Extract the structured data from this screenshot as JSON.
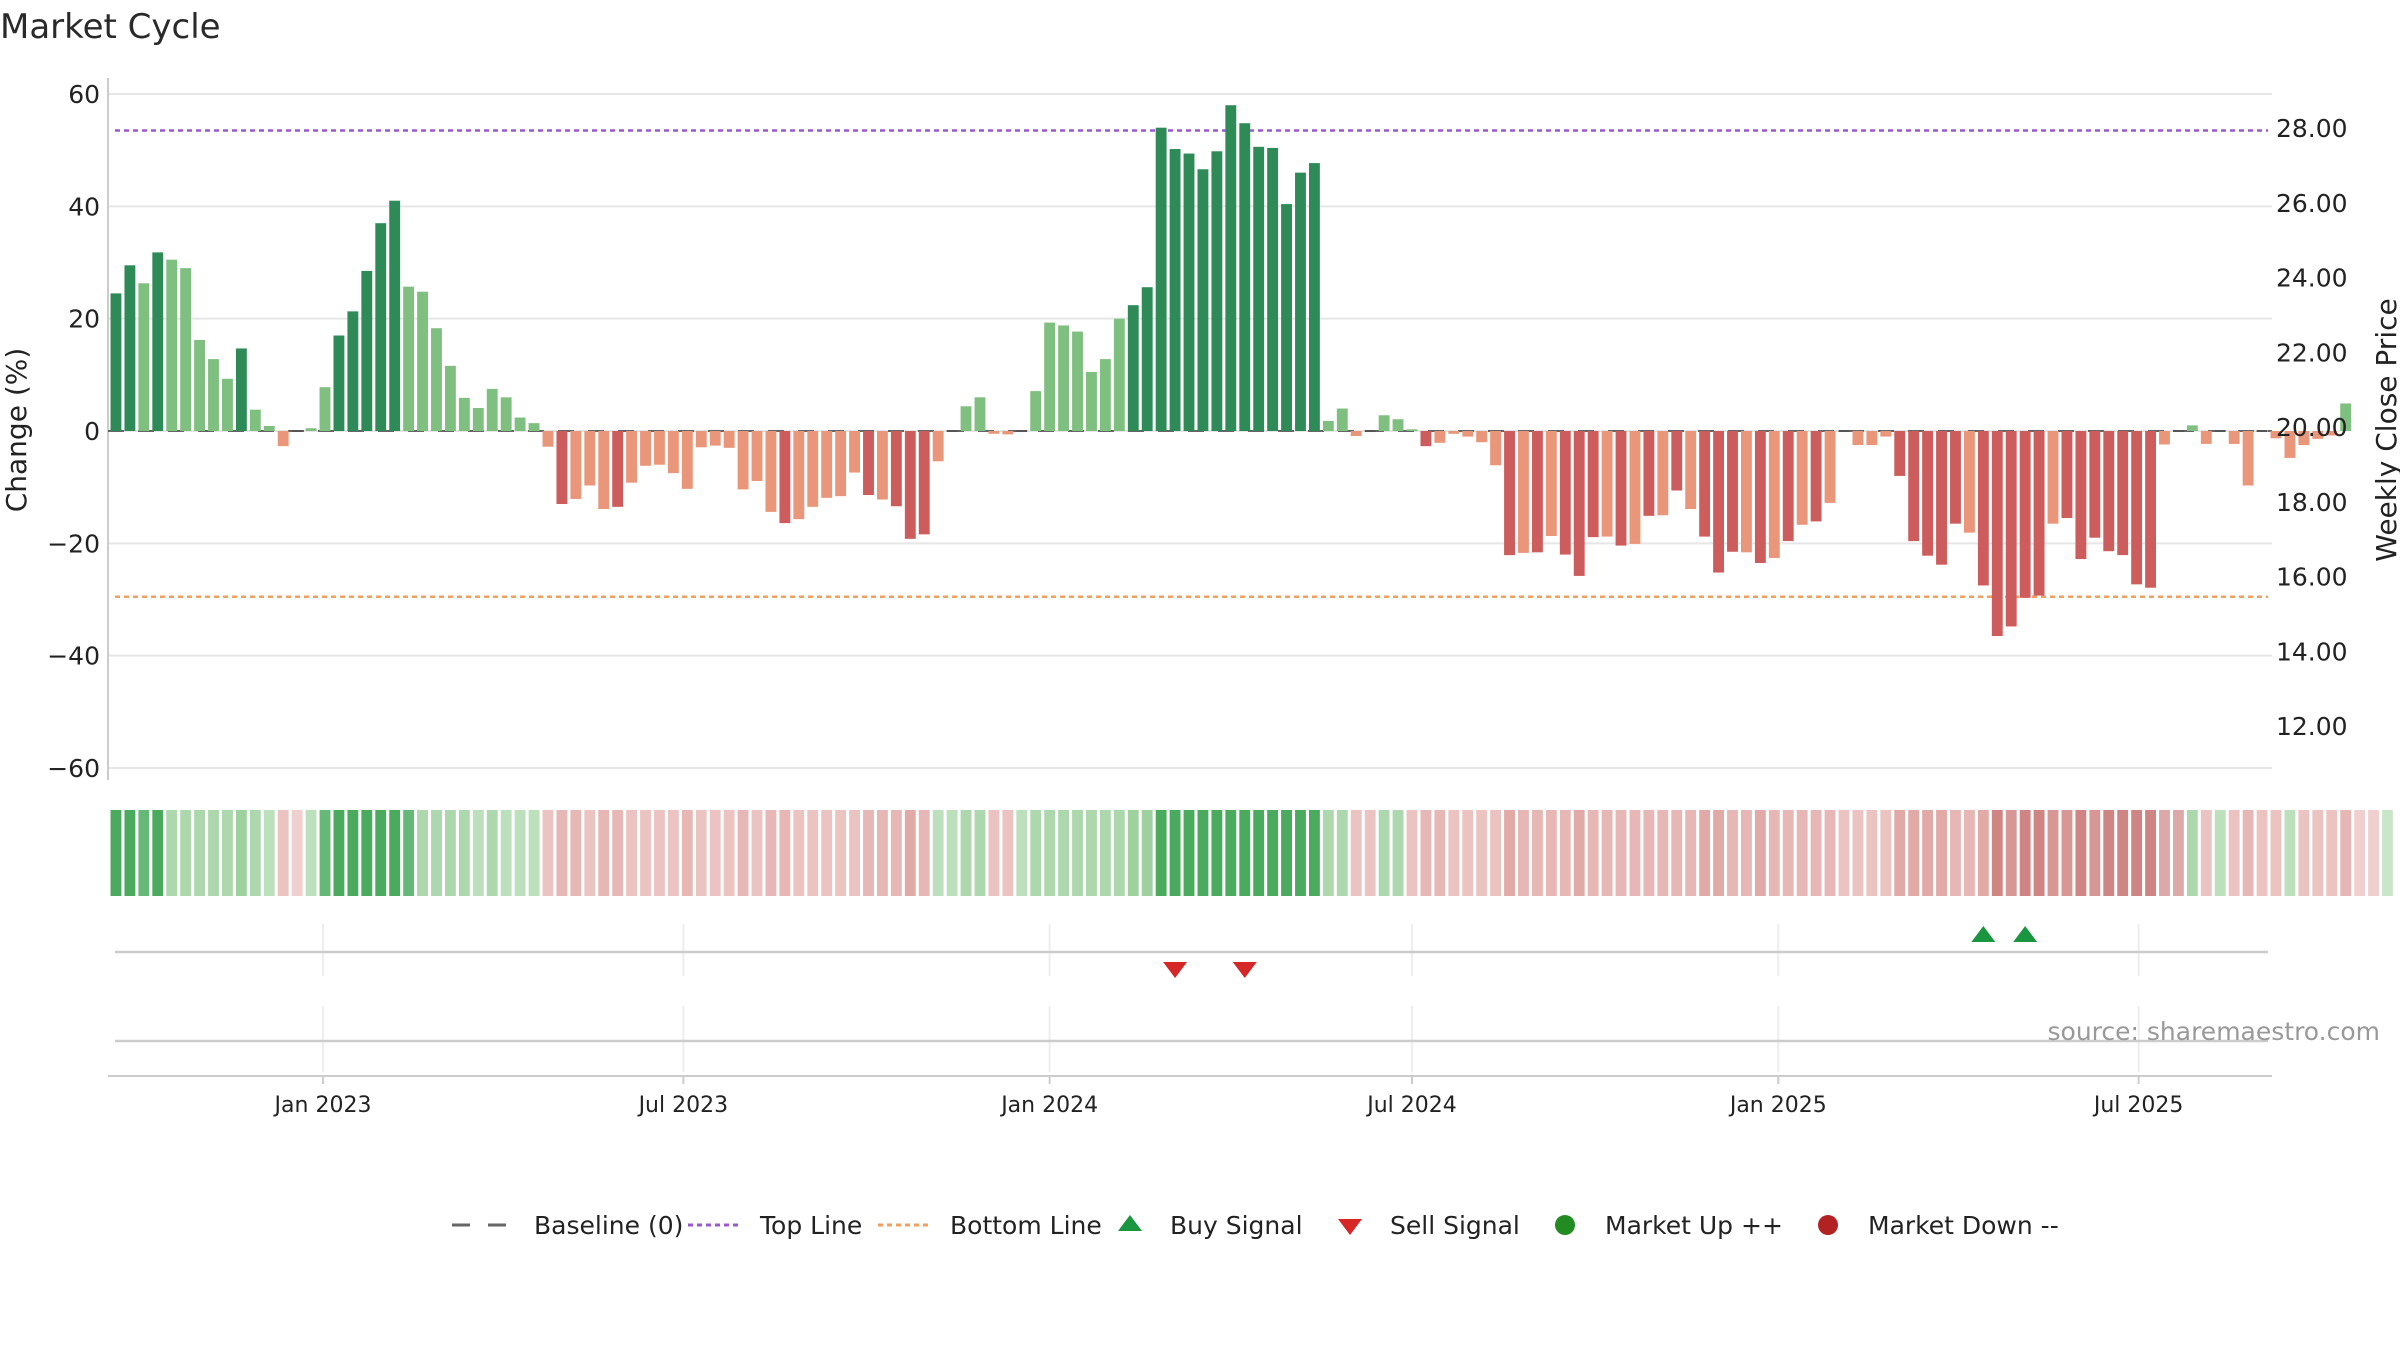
{
  "chart_data": {
    "type": "bar",
    "title": "Market Cycle",
    "ylabel_left": "Change (%)",
    "ylabel_right": "Weekly Close Price",
    "ylim_left": [
      -60,
      60
    ],
    "yticks_left": [
      "60",
      "40",
      "20",
      "0",
      "−20",
      "−40",
      "−60"
    ],
    "yticks_left_values": [
      60,
      40,
      20,
      0,
      -20,
      -40,
      -60
    ],
    "yticks_right": [
      "28.00",
      "26.00",
      "24.00",
      "22.00",
      "20.00",
      "18.00",
      "16.00",
      "14.00",
      "12.00"
    ],
    "yticks_right_values": [
      28,
      26,
      24,
      22,
      20,
      18,
      16,
      14,
      12
    ],
    "ylim_right": [
      10.9,
      30.0
    ],
    "x_range": [
      "2022-09-15",
      "2025-09-06"
    ],
    "x_ticks": [
      {
        "label": "Jan 2023",
        "date": "2023-01-01"
      },
      {
        "label": "Jul 2023",
        "date": "2023-07-01"
      },
      {
        "label": "Jan 2024",
        "date": "2024-01-01"
      },
      {
        "label": "Jul 2024",
        "date": "2024-07-01"
      },
      {
        "label": "Jan 2025",
        "date": "2025-01-01"
      },
      {
        "label": "Jul 2025",
        "date": "2025-07-01"
      }
    ],
    "top_line": 53.5,
    "bottom_line": -29.5,
    "bar_start_date": "2022-09-19",
    "bar_interval_days": 7,
    "values": [
      24.5,
      29.5,
      26.3,
      31.8,
      30.5,
      29.0,
      16.2,
      12.8,
      9.3,
      14.7,
      3.8,
      0.9,
      -2.7,
      0,
      0.5,
      7.8,
      17.0,
      21.3,
      28.5,
      37.0,
      41.0,
      25.7,
      24.8,
      18.3,
      11.6,
      5.9,
      4.1,
      7.5,
      6.0,
      2.4,
      1.4,
      -2.8,
      -13.0,
      -12.1,
      -9.7,
      -13.9,
      -13.5,
      -9.2,
      -6.2,
      -6.0,
      -7.5,
      -10.3,
      -2.9,
      -2.6,
      -3.0,
      -10.4,
      -8.9,
      -14.4,
      -16.4,
      -15.7,
      -13.5,
      -11.9,
      -11.6,
      -7.4,
      -11.4,
      -12.2,
      -13.4,
      -19.2,
      -18.4,
      -5.4,
      0,
      4.4,
      6.0,
      -0.5,
      -0.6,
      0,
      7.1,
      19.3,
      18.8,
      17.7,
      10.5,
      12.8,
      20.0,
      22.4,
      25.6,
      54.0,
      50.2,
      49.4,
      46.6,
      49.8,
      58.0,
      54.8,
      50.6,
      50.4,
      40.4,
      46.0,
      47.7,
      1.8,
      4.0,
      -0.9,
      0,
      2.8,
      2.1,
      0.3,
      -2.7,
      -2.1,
      -0.5,
      -1.0,
      -2.0,
      -6.1,
      -22.1,
      -21.7,
      -21.6,
      -18.7,
      -22.0,
      -25.8,
      -18.9,
      -18.8,
      -20.4,
      -20.1,
      -15.1,
      -15.0,
      -10.6,
      -13.9,
      -18.8,
      -25.2,
      -21.5,
      -21.6,
      -23.5,
      -22.6,
      -19.6,
      -16.7,
      -16.1,
      -12.8,
      0,
      -2.5,
      -2.5,
      -1.0,
      -8.0,
      -19.6,
      -22.2,
      -23.8,
      -16.5,
      -18.1,
      -27.5,
      -36.5,
      -34.8,
      -29.7,
      -29.3,
      -16.5,
      -15.5,
      -22.8,
      -19.0,
      -21.4,
      -22.1,
      -27.3,
      -27.9,
      -2.4,
      0,
      1.0,
      -2.3,
      0,
      -2.3,
      -9.7,
      0,
      -1.3,
      -4.8,
      -2.5,
      -1.4,
      -0.8,
      4.9
    ],
    "intensity": [
      3,
      3,
      2,
      3,
      2,
      2,
      2,
      2,
      2,
      3,
      2,
      1,
      1,
      0,
      1,
      2,
      3,
      3,
      3,
      3,
      3,
      2,
      2,
      2,
      2,
      2,
      1,
      2,
      1,
      1,
      1,
      1,
      2,
      2,
      1,
      2,
      2,
      1,
      1,
      1,
      1,
      2,
      1,
      1,
      1,
      2,
      1,
      2,
      2,
      1,
      1,
      1,
      1,
      1,
      2,
      2,
      2,
      3,
      2,
      1,
      1,
      2,
      2,
      1,
      1,
      1,
      2,
      2,
      2,
      2,
      2,
      2,
      2,
      3,
      3,
      3,
      3,
      3,
      3,
      3,
      3,
      3,
      3,
      3,
      3,
      3,
      3,
      2,
      2,
      1,
      1,
      2,
      2,
      1,
      2,
      2,
      1,
      1,
      1,
      1,
      3,
      2,
      2,
      2,
      2,
      3,
      2,
      2,
      2,
      2,
      2,
      2,
      2,
      2,
      3,
      3,
      2,
      2,
      3,
      2,
      2,
      2,
      2,
      2,
      1,
      1,
      1,
      1,
      3,
      3,
      3,
      3,
      2,
      2,
      3,
      3,
      2,
      3,
      3,
      2,
      2,
      3,
      2,
      3,
      3,
      3,
      3,
      1,
      1,
      2,
      1,
      1,
      1,
      2,
      1,
      1,
      1,
      1,
      1,
      1,
      2
    ],
    "regime": [
      2,
      2,
      2,
      2,
      1,
      1,
      1,
      1,
      1,
      1,
      1,
      1,
      -1,
      -1,
      1,
      2,
      2,
      2,
      2,
      2,
      2,
      2,
      1,
      1,
      1,
      1,
      1,
      1,
      1,
      1,
      1,
      -1,
      -1,
      -1,
      -1,
      -1,
      -1,
      -1,
      -1,
      -1,
      -1,
      -1,
      -1,
      -1,
      -1,
      -1,
      -1,
      -1,
      -1,
      -1,
      -1,
      -1,
      -1,
      -1,
      -1,
      -1,
      -1,
      -1,
      -1,
      1,
      1,
      1,
      1,
      -1,
      -1,
      1,
      1,
      1,
      1,
      1,
      1,
      1,
      1,
      1,
      1,
      2,
      2,
      2,
      2,
      2,
      2,
      2,
      2,
      2,
      2,
      2,
      2,
      1,
      1,
      -1,
      -1,
      1,
      1,
      -1,
      -1,
      -1,
      -1,
      -1,
      -1,
      -1,
      -1,
      -1,
      -1,
      -1,
      -1,
      -1,
      -1,
      -1,
      -1,
      -1,
      -1,
      -1,
      -1,
      -1,
      -1,
      -1,
      -1,
      -1,
      -1,
      -1,
      -1,
      -1,
      -1,
      -1,
      -1,
      -1,
      -1,
      -1,
      -1,
      -1,
      -1,
      -1,
      -1,
      -1,
      -1,
      -2,
      -2,
      -2,
      -2,
      -2,
      -2,
      -2,
      -2,
      -2,
      -2,
      -2,
      -2,
      -2,
      -2,
      1,
      -1,
      1,
      -1,
      -1,
      -1,
      -1,
      1,
      -1,
      -1,
      -1,
      -1,
      -1,
      -1,
      1
    ],
    "buy_signals": [
      "2025-04-14",
      "2025-05-05"
    ],
    "sell_signals": [
      "2024-03-04",
      "2024-04-08"
    ],
    "colors": {
      "pos_dark": "#2e8b57",
      "pos_light": "#7fbf7f",
      "neg_dark": "#cd5c5c",
      "neg_light": "#e9967a",
      "top_line": "#9b59d0",
      "bottom_line": "#f0a060",
      "baseline": "#666666",
      "buy": "#1a9641",
      "sell": "#d62728",
      "market_up": "#228b22",
      "market_down": "#b22222"
    },
    "legend_placement": "bottom-center",
    "legend": [
      {
        "label": "Baseline (0)",
        "symbol": "dash"
      },
      {
        "label": "Top Line",
        "symbol": "dot-purple"
      },
      {
        "label": "Bottom Line",
        "symbol": "dot-orange"
      },
      {
        "label": "Buy Signal",
        "symbol": "tri-up"
      },
      {
        "label": "Sell Signal",
        "symbol": "tri-down"
      },
      {
        "label": "Market Up ++",
        "symbol": "circle-green"
      },
      {
        "label": "Market Down --",
        "symbol": "circle-red"
      }
    ],
    "source": "source: sharemaestro.com",
    "grid": true
  }
}
